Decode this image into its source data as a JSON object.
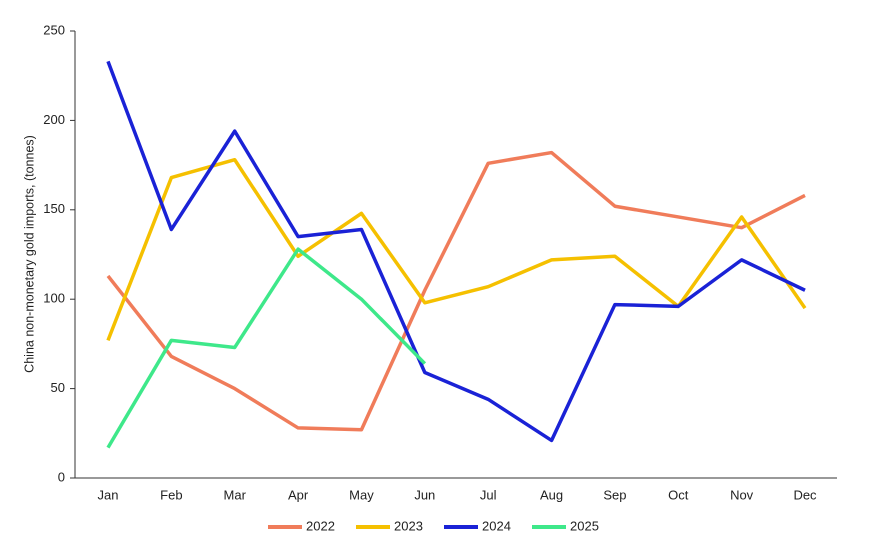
{
  "chart_data": {
    "type": "line",
    "y_label": "China non-monetary gold imports, (tonnes)",
    "categories": [
      "Jan",
      "Feb",
      "Mar",
      "Apr",
      "May",
      "Jun",
      "Jul",
      "Aug",
      "Sep",
      "Oct",
      "Nov",
      "Dec"
    ],
    "series": [
      {
        "name": "2022",
        "color": "#f07c5a",
        "values": [
          113,
          68,
          50,
          28,
          27,
          105,
          176,
          182,
          152,
          146,
          140,
          158
        ]
      },
      {
        "name": "2023",
        "color": "#f5c000",
        "values": [
          77,
          168,
          178,
          124,
          148,
          98,
          107,
          122,
          124,
          96,
          146,
          95
        ]
      },
      {
        "name": "2024",
        "color": "#1a22d6",
        "values": [
          233,
          139,
          194,
          135,
          139,
          59,
          44,
          21,
          97,
          96,
          122,
          105
        ]
      },
      {
        "name": "2025",
        "color": "#3ee88a",
        "values": [
          17,
          77,
          73,
          128,
          100,
          64,
          null,
          null,
          null,
          null,
          null,
          null
        ]
      }
    ],
    "ylim": [
      0,
      250
    ],
    "yticks": [
      0,
      50,
      100,
      150,
      200,
      250
    ],
    "legend": "bottom"
  }
}
